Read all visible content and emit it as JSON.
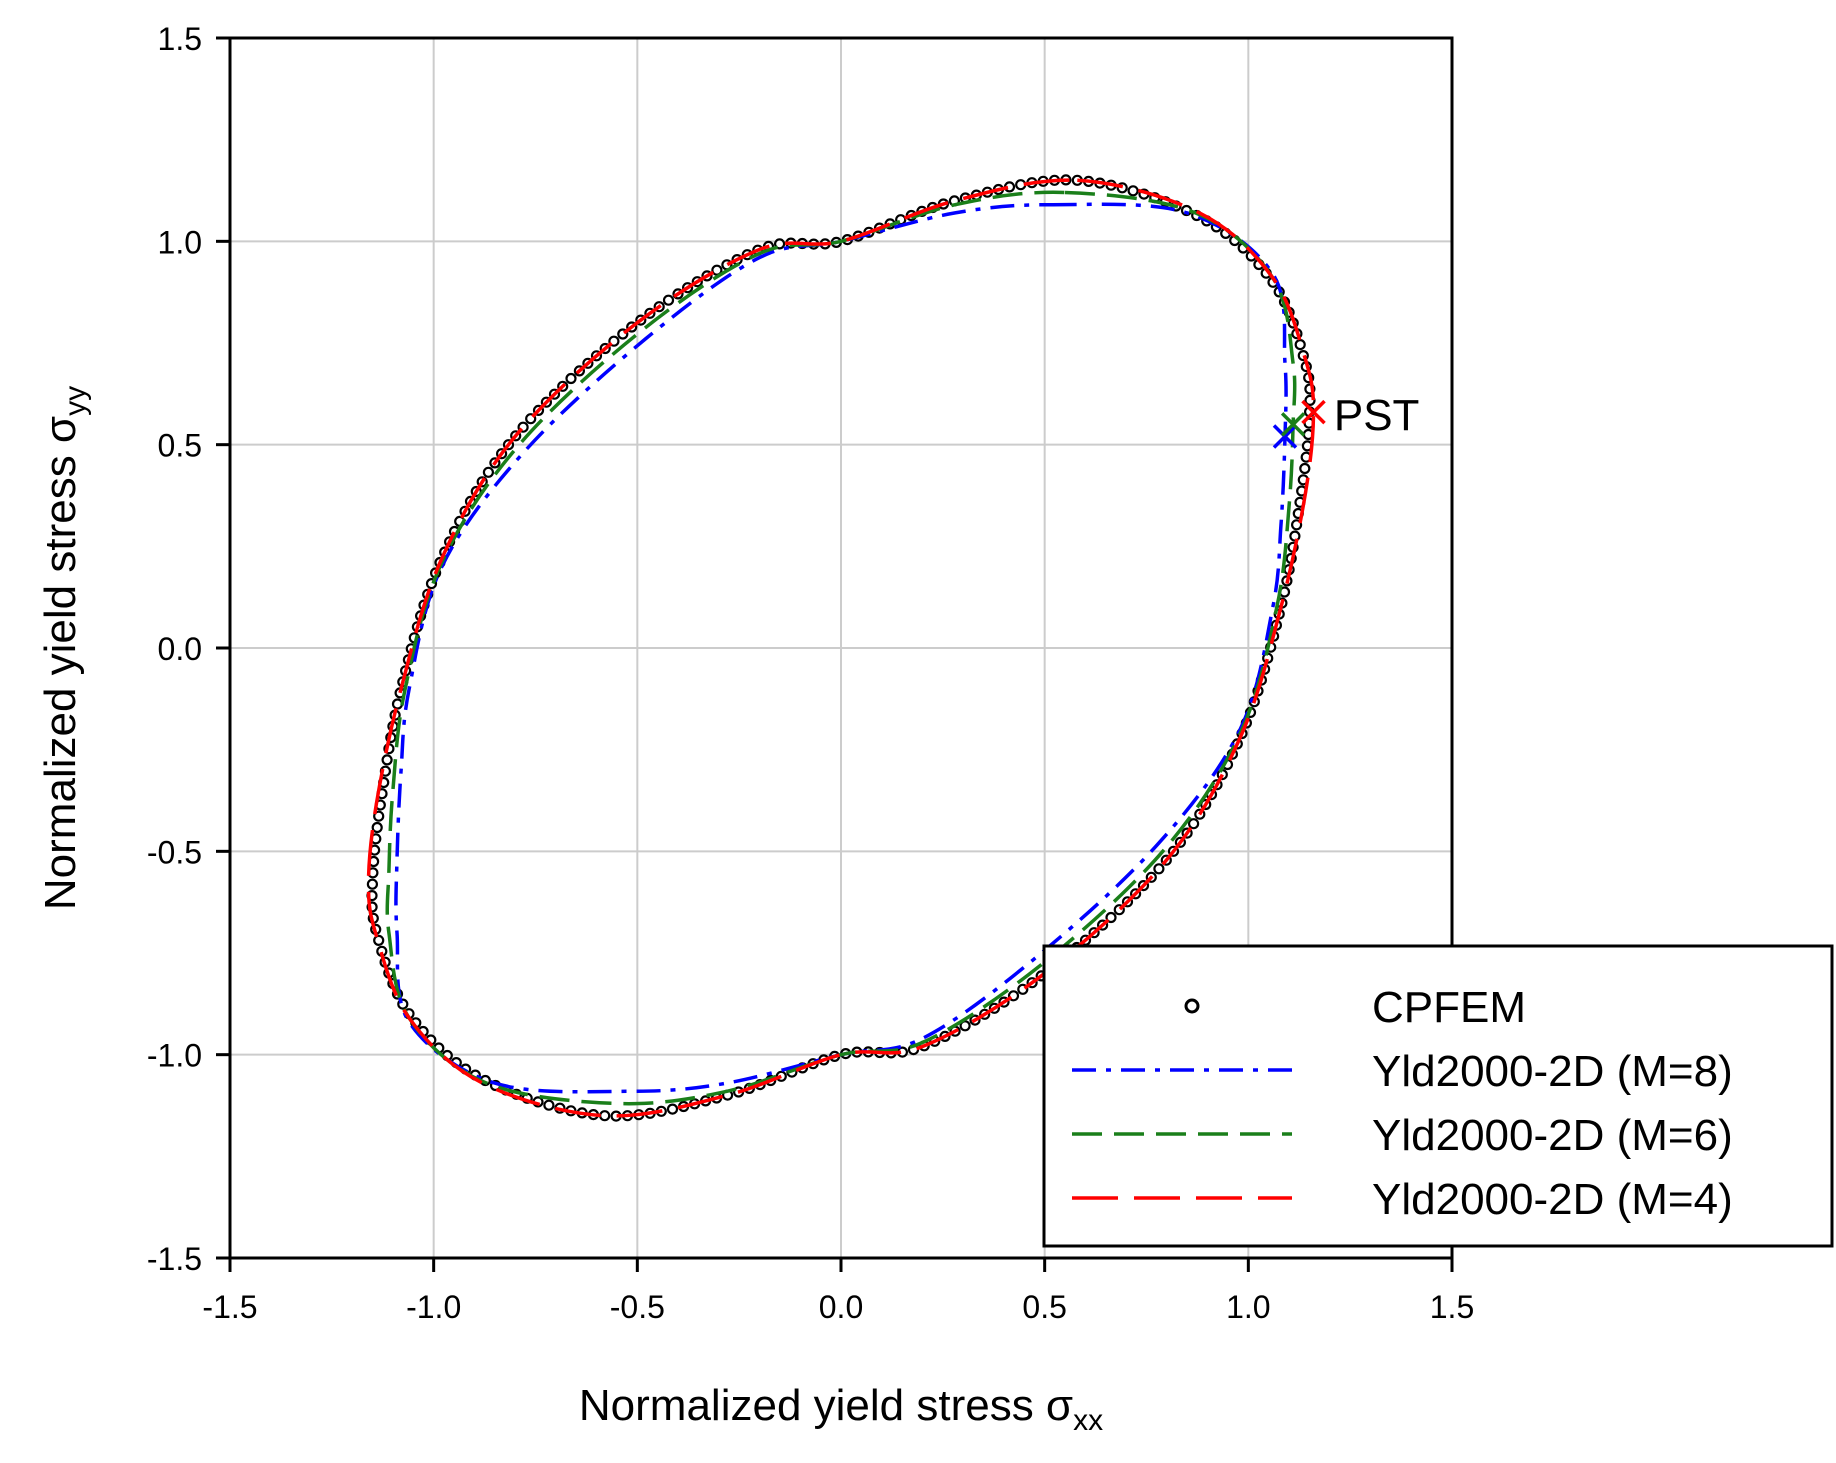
{
  "chart_data": {
    "type": "line",
    "title": "",
    "xlabel": "Normalized yield stress σ",
    "xlabel_sub": "xx",
    "ylabel": "Normalized yield stress σ",
    "ylabel_sub": "yy",
    "xlim": [
      -1.5,
      1.5
    ],
    "ylim": [
      -1.5,
      1.5
    ],
    "xticks": [
      -1.5,
      -1.0,
      -0.5,
      0.0,
      0.5,
      1.0,
      1.5
    ],
    "yticks": [
      -1.5,
      -1.0,
      -0.5,
      0.0,
      0.5,
      1.0,
      1.5
    ],
    "xtick_labels": [
      "-1.5",
      "-1.0",
      "-0.5",
      "0.0",
      "0.5",
      "1.0",
      "1.5"
    ],
    "ytick_labels": [
      "-1.5",
      "-1.0",
      "-0.5",
      "0.0",
      "0.5",
      "1.0",
      "1.5"
    ],
    "grid": true,
    "legend_position": "bottom-right",
    "series": [
      {
        "name": "CPFEM",
        "style": "circle-markers",
        "color": "#000000",
        "points": [
          [
            0.58,
            1.15
          ],
          [
            0.88,
            1.06
          ],
          [
            1.06,
            0.9
          ],
          [
            1.14,
            0.7
          ],
          [
            1.15,
            0.57
          ],
          [
            1.13,
            0.38
          ],
          [
            1.08,
            0.1
          ],
          [
            0.98,
            -0.22
          ],
          [
            0.8,
            -0.52
          ],
          [
            0.5,
            -0.8
          ],
          [
            0.2,
            -0.98
          ],
          [
            0.0,
            -1.0
          ],
          [
            -0.28,
            -1.1
          ],
          [
            -0.58,
            -1.15
          ],
          [
            -0.88,
            -1.06
          ],
          [
            -1.06,
            -0.9
          ],
          [
            -1.14,
            -0.7
          ],
          [
            -1.15,
            -0.57
          ],
          [
            -1.13,
            -0.38
          ],
          [
            -1.08,
            -0.1
          ],
          [
            -0.98,
            0.22
          ],
          [
            -0.8,
            0.52
          ],
          [
            -0.5,
            0.8
          ],
          [
            -0.2,
            0.98
          ],
          [
            0.0,
            1.0
          ],
          [
            0.28,
            1.1
          ]
        ]
      },
      {
        "name": "Yld2000-2D (M=8)",
        "style": "dash-dot",
        "color": "#0000FF",
        "points": [
          [
            0.52,
            1.09
          ],
          [
            0.85,
            1.07
          ],
          [
            1.06,
            0.92
          ],
          [
            1.09,
            0.7
          ],
          [
            1.09,
            0.52
          ],
          [
            1.08,
            0.3
          ],
          [
            1.06,
            0.1
          ],
          [
            0.98,
            -0.2
          ],
          [
            0.78,
            -0.48
          ],
          [
            0.48,
            -0.76
          ],
          [
            0.2,
            -0.96
          ],
          [
            0.0,
            -1.0
          ],
          [
            -0.28,
            -1.07
          ],
          [
            -0.52,
            -1.09
          ],
          [
            -0.85,
            -1.07
          ],
          [
            -1.06,
            -0.92
          ],
          [
            -1.09,
            -0.7
          ],
          [
            -1.09,
            -0.52
          ],
          [
            -1.08,
            -0.3
          ],
          [
            -1.06,
            -0.1
          ],
          [
            -0.98,
            0.2
          ],
          [
            -0.78,
            0.48
          ],
          [
            -0.48,
            0.76
          ],
          [
            -0.2,
            0.96
          ],
          [
            0.0,
            1.0
          ],
          [
            0.28,
            1.07
          ]
        ]
      },
      {
        "name": "Yld2000-2D (M=6)",
        "style": "dashed",
        "color": "#1A7F1A",
        "points": [
          [
            0.55,
            1.12
          ],
          [
            0.87,
            1.07
          ],
          [
            1.06,
            0.91
          ],
          [
            1.11,
            0.7
          ],
          [
            1.11,
            0.55
          ],
          [
            1.1,
            0.35
          ],
          [
            1.07,
            0.1
          ],
          [
            0.98,
            -0.21
          ],
          [
            0.79,
            -0.5
          ],
          [
            0.49,
            -0.78
          ],
          [
            0.2,
            -0.97
          ],
          [
            0.0,
            -1.0
          ],
          [
            -0.28,
            -1.09
          ],
          [
            -0.55,
            -1.12
          ],
          [
            -0.87,
            -1.07
          ],
          [
            -1.06,
            -0.91
          ],
          [
            -1.11,
            -0.7
          ],
          [
            -1.11,
            -0.55
          ],
          [
            -1.1,
            -0.35
          ],
          [
            -1.07,
            -0.1
          ],
          [
            -0.98,
            0.21
          ],
          [
            -0.79,
            0.5
          ],
          [
            -0.49,
            0.78
          ],
          [
            -0.2,
            0.97
          ],
          [
            0.0,
            1.0
          ],
          [
            0.28,
            1.09
          ]
        ]
      },
      {
        "name": "Yld2000-2D (M=4)",
        "style": "long-dash",
        "color": "#FF0000",
        "points": [
          [
            0.58,
            1.15
          ],
          [
            0.88,
            1.07
          ],
          [
            1.06,
            0.91
          ],
          [
            1.14,
            0.71
          ],
          [
            1.16,
            0.58
          ],
          [
            1.14,
            0.38
          ],
          [
            1.08,
            0.1
          ],
          [
            0.98,
            -0.22
          ],
          [
            0.8,
            -0.52
          ],
          [
            0.5,
            -0.8
          ],
          [
            0.2,
            -0.98
          ],
          [
            0.0,
            -1.0
          ],
          [
            -0.28,
            -1.1
          ],
          [
            -0.58,
            -1.15
          ],
          [
            -0.88,
            -1.07
          ],
          [
            -1.06,
            -0.91
          ],
          [
            -1.14,
            -0.71
          ],
          [
            -1.16,
            -0.58
          ],
          [
            -1.14,
            -0.38
          ],
          [
            -1.08,
            -0.1
          ],
          [
            -0.98,
            0.22
          ],
          [
            -0.8,
            0.52
          ],
          [
            -0.5,
            0.8
          ],
          [
            -0.2,
            0.98
          ],
          [
            0.0,
            1.0
          ],
          [
            0.28,
            1.1
          ]
        ]
      }
    ],
    "pst_markers": [
      {
        "x": 1.09,
        "y": 0.52,
        "color": "#0000FF"
      },
      {
        "x": 1.11,
        "y": 0.55,
        "color": "#1A7F1A"
      },
      {
        "x": 1.16,
        "y": 0.58,
        "color": "#FF0000"
      }
    ],
    "annotation": {
      "text": "PST",
      "x": 1.21,
      "y": 0.575
    }
  }
}
